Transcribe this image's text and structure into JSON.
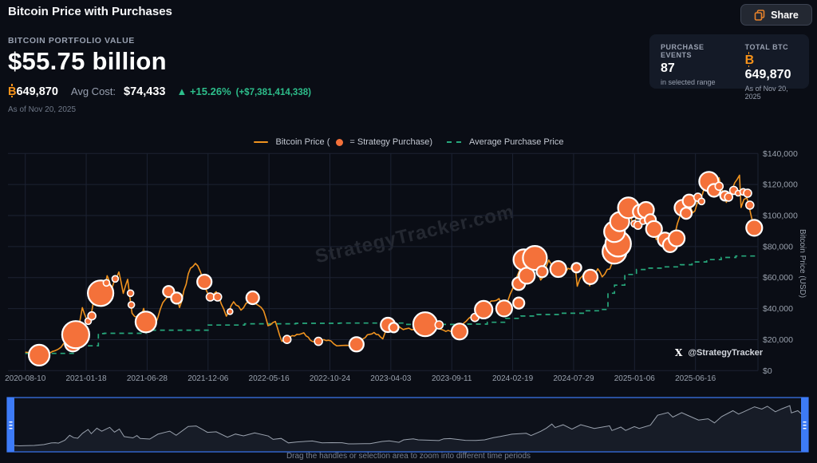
{
  "page": {
    "title": "Bitcoin Price with Purchases"
  },
  "share": {
    "label": "Share"
  },
  "icons": {
    "share": "copy-squares",
    "btc_symbol": "B-with-bars",
    "up_arrow": "▲",
    "x_logo": "X"
  },
  "portfolio": {
    "label": "BITCOIN PORTFOLIO VALUE",
    "value": "$55.75 billion",
    "btc_amount": "649,870",
    "avg_cost_label": "Avg Cost:",
    "avg_cost": "$74,433",
    "change_pct": "+15.26%",
    "change_abs": "(+$7,381,414,338)",
    "as_of": "As of Nov 20, 2025"
  },
  "stats": {
    "purchase_events": {
      "label": "PURCHASE EVENTS",
      "value": "87",
      "sub": "in selected range"
    },
    "total_btc": {
      "label": "TOTAL BTC",
      "value": "649,870",
      "sub": "As of Nov 20, 2025"
    }
  },
  "legend": {
    "items": [
      {
        "swatch": "line",
        "color": "#f0931f",
        "label": "Bitcoin Price ("
      },
      {
        "swatch": "dot",
        "color": "#f4713a",
        "label": "= Strategy Purchase)"
      },
      {
        "swatch": "dash",
        "color": "#27a87c",
        "label": "Average Purchase Price"
      }
    ]
  },
  "watermark": "StrategyTracker.com",
  "attribution": "@StrategyTracker",
  "navigator_hint": "Drag the handles or selection area to zoom into different time periods",
  "chart_data": {
    "type": "line",
    "title": "Bitcoin Price with Purchases",
    "x_range": [
      "2020-08-10",
      "2025-11-20"
    ],
    "x_ticks": [
      "2020-08-10",
      "2021-01-18",
      "2021-06-28",
      "2021-12-06",
      "2022-05-16",
      "2022-10-24",
      "2023-04-03",
      "2023-09-11",
      "2024-02-19",
      "2024-07-29",
      "2025-01-06",
      "2025-06-16"
    ],
    "y_axis_label": "Bitcoin Price (USD)",
    "y_range_usd": [
      0,
      140000
    ],
    "y_ticks_usd_thousands": [
      0,
      20,
      40,
      60,
      80,
      100,
      120,
      140
    ],
    "grid": true,
    "legend_position": "top",
    "colors": {
      "price_line": "#f0931f",
      "avg_line": "#27a87c",
      "purchase_fill": "#f4713a",
      "purchase_stroke": "#ffffff",
      "grid": "#1c2232",
      "tick_text": "#99a1ad",
      "navigator_accent": "#3d7bf7",
      "navigator_line": "#9aa2ae"
    },
    "series": [
      {
        "name": "Bitcoin Price",
        "type": "line",
        "color": "#f0931f",
        "points_t_price_k": [
          [
            0,
            11.9
          ],
          [
            0.008,
            11.4
          ],
          [
            0.015,
            10.3
          ],
          [
            0.023,
            10.9
          ],
          [
            0.034,
            11.5
          ],
          [
            0.046,
            14.1
          ],
          [
            0.055,
            18.7
          ],
          [
            0.06,
            19.2
          ],
          [
            0.064,
            18.1
          ],
          [
            0.072,
            26.4
          ],
          [
            0.078,
            40.6
          ],
          [
            0.083,
            34
          ],
          [
            0.088,
            32.1
          ],
          [
            0.094,
            46.4
          ],
          [
            0.101,
            57.5
          ],
          [
            0.105,
            45.2
          ],
          [
            0.112,
            61.2
          ],
          [
            0.118,
            52.3
          ],
          [
            0.128,
            63.6
          ],
          [
            0.134,
            49.8
          ],
          [
            0.14,
            58.9
          ],
          [
            0.146,
            37
          ],
          [
            0.157,
            33.4
          ],
          [
            0.162,
            40.1
          ],
          [
            0.166,
            31.6
          ],
          [
            0.178,
            29.9
          ],
          [
            0.188,
            43.8
          ],
          [
            0.198,
            50
          ],
          [
            0.203,
            52.7
          ],
          [
            0.211,
            40.7
          ],
          [
            0.226,
            66.1
          ],
          [
            0.236,
            67.6
          ],
          [
            0.243,
            58.7
          ],
          [
            0.25,
            49.3
          ],
          [
            0.261,
            50.9
          ],
          [
            0.275,
            35.1
          ],
          [
            0.285,
            44.4
          ],
          [
            0.295,
            39
          ],
          [
            0.309,
            47.5
          ],
          [
            0.326,
            38.6
          ],
          [
            0.332,
            29
          ],
          [
            0.342,
            31.7
          ],
          [
            0.351,
            18.9
          ],
          [
            0.362,
            21.7
          ],
          [
            0.381,
            24.4
          ],
          [
            0.393,
            18.8
          ],
          [
            0.405,
            19.5
          ],
          [
            0.418,
            19.2
          ],
          [
            0.426,
            16
          ],
          [
            0.432,
            16.2
          ],
          [
            0.446,
            16.8
          ],
          [
            0.453,
            16.6
          ],
          [
            0.468,
            23.1
          ],
          [
            0.477,
            24.6
          ],
          [
            0.489,
            20.5
          ],
          [
            0.495,
            27.6
          ],
          [
            0.507,
            30.4
          ],
          [
            0.513,
            27.7
          ],
          [
            0.521,
            27
          ],
          [
            0.539,
            25.6
          ],
          [
            0.545,
            30.5
          ],
          [
            0.553,
            31.3
          ],
          [
            0.572,
            26.1
          ],
          [
            0.585,
            25.9
          ],
          [
            0.596,
            27.5
          ],
          [
            0.607,
            33.9
          ],
          [
            0.615,
            36.9
          ],
          [
            0.63,
            43.9
          ],
          [
            0.648,
            46.4
          ],
          [
            0.654,
            40
          ],
          [
            0.666,
            52.2
          ],
          [
            0.673,
            61.2
          ],
          [
            0.68,
            73
          ],
          [
            0.684,
            62.9
          ],
          [
            0.694,
            71.1
          ],
          [
            0.705,
            58.4
          ],
          [
            0.716,
            71.3
          ],
          [
            0.733,
            60.5
          ],
          [
            0.752,
            68.1
          ],
          [
            0.755,
            54.4
          ],
          [
            0.766,
            64.3
          ],
          [
            0.772,
            54.7
          ],
          [
            0.783,
            65.7
          ],
          [
            0.789,
            60.5
          ],
          [
            0.803,
            69.8
          ],
          [
            0.812,
            98.5
          ],
          [
            0.825,
            106.2
          ],
          [
            0.831,
            93
          ],
          [
            0.842,
            105.9
          ],
          [
            0.85,
            97.8
          ],
          [
            0.863,
            84.5
          ],
          [
            0.875,
            88.3
          ],
          [
            0.883,
            76.5
          ],
          [
            0.892,
            94.8
          ],
          [
            0.906,
            111.5
          ],
          [
            0.913,
            101.8
          ],
          [
            0.919,
            107.9
          ],
          [
            0.933,
            122.8
          ],
          [
            0.942,
            116
          ],
          [
            0.949,
            124.3
          ],
          [
            0.959,
            108.5
          ],
          [
            0.967,
            117
          ],
          [
            0.977,
            126
          ],
          [
            0.979,
            105.2
          ],
          [
            0.987,
            111.4
          ],
          [
            0.992,
            101.6
          ],
          [
            0.997,
            94.3
          ],
          [
            1,
            86.5
          ]
        ]
      },
      {
        "name": "Average Purchase Price",
        "type": "step-line",
        "style": "dashed",
        "color": "#27a87c",
        "points_t_price_k": [
          [
            0,
            11.1
          ],
          [
            0.055,
            11.1
          ],
          [
            0.068,
            16
          ],
          [
            0.1,
            23.9
          ],
          [
            0.108,
            24.1
          ],
          [
            0.165,
            26.1
          ],
          [
            0.25,
            29.4
          ],
          [
            0.3,
            30.2
          ],
          [
            0.37,
            30.5
          ],
          [
            0.43,
            30.7
          ],
          [
            0.52,
            29.8
          ],
          [
            0.6,
            30
          ],
          [
            0.632,
            31.2
          ],
          [
            0.657,
            33.7
          ],
          [
            0.678,
            35.2
          ],
          [
            0.7,
            36.2
          ],
          [
            0.73,
            37
          ],
          [
            0.765,
            38.6
          ],
          [
            0.788,
            39.4
          ],
          [
            0.797,
            49.9
          ],
          [
            0.806,
            55.1
          ],
          [
            0.82,
            62
          ],
          [
            0.836,
            65.2
          ],
          [
            0.852,
            66.1
          ],
          [
            0.872,
            66.9
          ],
          [
            0.896,
            68.3
          ],
          [
            0.912,
            70.1
          ],
          [
            0.932,
            71.6
          ],
          [
            0.952,
            73
          ],
          [
            0.972,
            73.9
          ],
          [
            1,
            74.4
          ]
        ]
      },
      {
        "name": "Strategy Purchases",
        "type": "scatter",
        "color": "#f4713a",
        "count_in_range": 87,
        "points_t_price_k_radius": [
          [
            0.019,
            10,
            13
          ],
          [
            0.065,
            17.5,
            10
          ],
          [
            0.069,
            23.2,
            17
          ],
          [
            0.086,
            31.9,
            4
          ],
          [
            0.091,
            35.3,
            5
          ],
          [
            0.103,
            49.9,
            16
          ],
          [
            0.111,
            56.6,
            4
          ],
          [
            0.123,
            59.2,
            4
          ],
          [
            0.144,
            49.9,
            4
          ],
          [
            0.145,
            42.4,
            4
          ],
          [
            0.165,
            31.4,
            13
          ],
          [
            0.196,
            51,
            7
          ],
          [
            0.207,
            46.8,
            7
          ],
          [
            0.245,
            57.3,
            9
          ],
          [
            0.253,
            47.5,
            5
          ],
          [
            0.263,
            47.5,
            5
          ],
          [
            0.28,
            38.1,
            3.5
          ],
          [
            0.311,
            47,
            8
          ],
          [
            0.358,
            20.1,
            5
          ],
          [
            0.401,
            18.9,
            5
          ],
          [
            0.453,
            17,
            9
          ],
          [
            0.496,
            29.5,
            9
          ],
          [
            0.504,
            27.8,
            6
          ],
          [
            0.547,
            29.9,
            15
          ],
          [
            0.566,
            29.5,
            5
          ],
          [
            0.594,
            25.2,
            10
          ],
          [
            0.615,
            34.3,
            5
          ],
          [
            0.627,
            39.3,
            11
          ],
          [
            0.655,
            40.1,
            10
          ],
          [
            0.675,
            43.6,
            7
          ],
          [
            0.675,
            56.1,
            8
          ],
          [
            0.682,
            71.5,
            13
          ],
          [
            0.686,
            61.2,
            10
          ],
          [
            0.697,
            72.7,
            15
          ],
          [
            0.707,
            63.8,
            7
          ],
          [
            0.729,
            65.5,
            10
          ],
          [
            0.754,
            66.4,
            6
          ],
          [
            0.773,
            60.4,
            9
          ],
          [
            0.806,
            76.7,
            15
          ],
          [
            0.811,
            81.8,
            16
          ],
          [
            0.806,
            89.6,
            13
          ],
          [
            0.813,
            96.1,
            12
          ],
          [
            0.825,
            105,
            13
          ],
          [
            0.833,
            94.7,
            4
          ],
          [
            0.838,
            93.8,
            5
          ],
          [
            0.841,
            102.4,
            9
          ],
          [
            0.845,
            96.4,
            4
          ],
          [
            0.849,
            103.6,
            10
          ],
          [
            0.855,
            97.3,
            7
          ],
          [
            0.86,
            91.3,
            10
          ],
          [
            0.875,
            84.4,
            9
          ],
          [
            0.882,
            81,
            9
          ],
          [
            0.891,
            85.3,
            10
          ],
          [
            0.899,
            105,
            10
          ],
          [
            0.904,
            101.5,
            7
          ],
          [
            0.908,
            109.4,
            8
          ],
          [
            0.92,
            111.8,
            5
          ],
          [
            0.925,
            109.1,
            4
          ],
          [
            0.935,
            122,
            12
          ],
          [
            0.942,
            116.2,
            8
          ],
          [
            0.949,
            118.9,
            5
          ],
          [
            0.957,
            112.7,
            6
          ],
          [
            0.962,
            111.9,
            5
          ],
          [
            0.969,
            116.2,
            5
          ],
          [
            0.975,
            114.4,
            3.5
          ],
          [
            0.982,
            115.3,
            4
          ],
          [
            0.988,
            114.4,
            5
          ],
          [
            0.991,
            106.7,
            5
          ],
          [
            0.997,
            92.1,
            10
          ]
        ]
      }
    ],
    "navigator": {
      "series": "Bitcoin Price",
      "selection": "full-range"
    }
  }
}
